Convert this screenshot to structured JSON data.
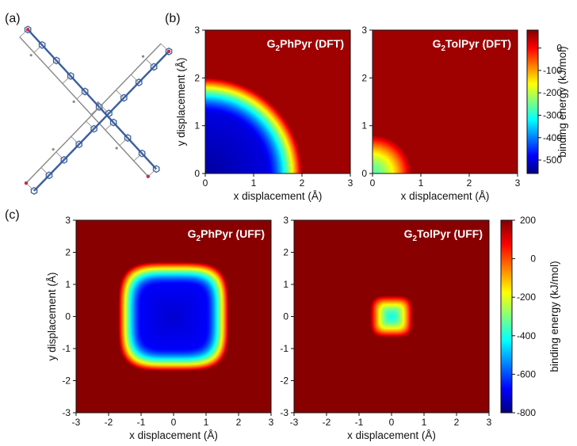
{
  "panel_labels": {
    "a": "(a)",
    "b": "(b)",
    "c": "(c)"
  },
  "colormap": [
    "#7f0000",
    "#ff0000",
    "#ff7f00",
    "#ffff00",
    "#7fff7f",
    "#00ffff",
    "#007fff",
    "#0000ff",
    "#00007f"
  ],
  "molecule_colors": {
    "backbone": "#3a5f9e",
    "hydrogen": "#888888",
    "accent": "#c0304a"
  },
  "chart_data": [
    {
      "id": "b-left",
      "type": "heatmap",
      "title_parts": [
        "G",
        "2",
        "PhPyr (DFT)"
      ],
      "xlabel": "x displacement (Å)",
      "ylabel": "y displacement (Å)",
      "xlim": [
        0,
        3
      ],
      "ylim": [
        0,
        3
      ],
      "xticks": [
        "0",
        "1",
        "2",
        "3"
      ],
      "yticks": [
        "0",
        "1",
        "2",
        "3"
      ],
      "well_shape": "round",
      "center": [
        0,
        0
      ],
      "plateau_radius": 1.25,
      "edge_radius": 2.0,
      "min_value": -540,
      "outside_value": 60
    },
    {
      "id": "b-right",
      "type": "heatmap",
      "title_parts": [
        "G",
        "2",
        "TolPyr (DFT)"
      ],
      "xlabel": "x displacement (Å)",
      "ylabel": "",
      "xlim": [
        0,
        3
      ],
      "ylim": [
        0,
        3
      ],
      "xticks": [
        "0",
        "1",
        "2",
        "3"
      ],
      "yticks": [
        "0",
        "1",
        "2",
        "3"
      ],
      "well_shape": "round",
      "center": [
        0,
        0
      ],
      "plateau_radius": 0.05,
      "edge_radius": 0.8,
      "min_value": -300,
      "outside_value": 60
    },
    {
      "id": "b-colorbar",
      "type": "colorbar",
      "label": "binding energy (kJ/mol)",
      "range": [
        -560,
        80
      ],
      "ticks": [
        "0",
        "-100",
        "-200",
        "-300",
        "-400",
        "-500"
      ]
    },
    {
      "id": "c-left",
      "type": "heatmap",
      "title_parts": [
        "G",
        "2",
        "PhPyr (UFF)"
      ],
      "xlabel": "x displacement (Å)",
      "ylabel": "y displacement (Å)",
      "xlim": [
        -3,
        3
      ],
      "ylim": [
        -3,
        3
      ],
      "xticks": [
        "-3",
        "-2",
        "-1",
        "0",
        "1",
        "2",
        "3"
      ],
      "yticks": [
        "-3",
        "-2",
        "-1",
        "0",
        "1",
        "2",
        "3"
      ],
      "well_shape": "rounded-square",
      "center": [
        0,
        0
      ],
      "plateau_radius": 1.0,
      "edge_radius": 1.7,
      "min_value": -720,
      "outside_value": 190
    },
    {
      "id": "c-right",
      "type": "heatmap",
      "title_parts": [
        "G",
        "2",
        "TolPyr (UFF)"
      ],
      "xlabel": "x displacement (Å)",
      "ylabel": "",
      "xlim": [
        -3,
        3
      ],
      "ylim": [
        -3,
        3
      ],
      "xticks": [
        "-3",
        "-2",
        "-1",
        "0",
        "1",
        "2",
        "3"
      ],
      "yticks": [
        "-3",
        "-2",
        "-1",
        "0",
        "1",
        "2",
        "3"
      ],
      "well_shape": "rounded-square",
      "center": [
        0,
        0
      ],
      "plateau_radius": 0.05,
      "edge_radius": 0.65,
      "min_value": -430,
      "outside_value": 190
    },
    {
      "id": "c-colorbar",
      "type": "colorbar",
      "label": "binding energy (kJ/mol)",
      "range": [
        -800,
        200
      ],
      "ticks": [
        "200",
        "0",
        "-200",
        "-400",
        "-600",
        "-800"
      ]
    }
  ]
}
